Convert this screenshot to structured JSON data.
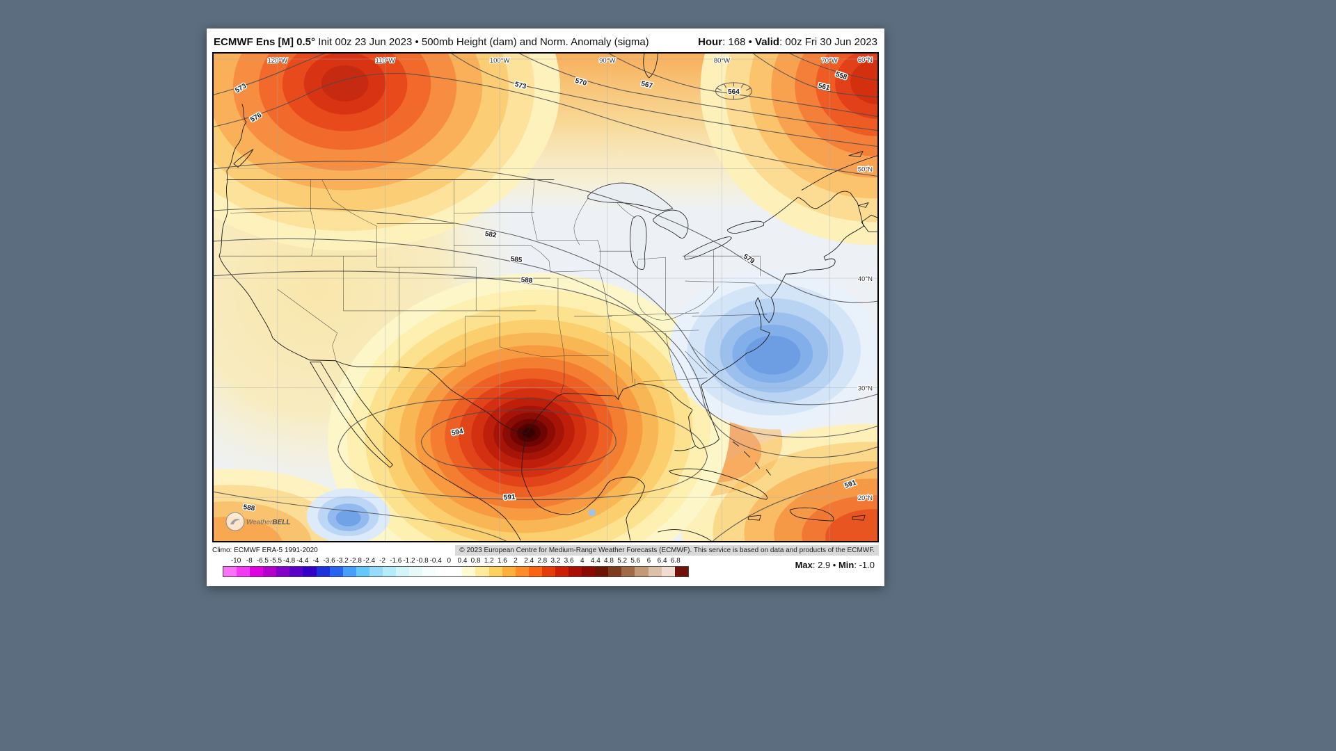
{
  "header": {
    "title_bold": "ECMWF Ens [M] 0.5°",
    "title_rest": "Init 00z 23 Jun 2023 • 500mb Height (dam) and Norm. Anomaly (sigma)",
    "hour_label": "Hour",
    "hour_value": "168",
    "valid_label": "Valid",
    "valid_value": "00z Fri 30 Jun 2023",
    "colon": ": ",
    "bullet": " • "
  },
  "map": {
    "lon_labels": [
      "120°W",
      "110°W",
      "100°W",
      "90°W",
      "80°W",
      "70°W"
    ],
    "lat_labels": [
      "60°N",
      "50°N",
      "40°N",
      "30°N",
      "20°N"
    ],
    "contour_labels": [
      "558",
      "561",
      "564",
      "567",
      "570",
      "573",
      "573",
      "576",
      "579",
      "582",
      "585",
      "588",
      "588",
      "591",
      "591",
      "594"
    ],
    "logo_weather": "Weather",
    "logo_bell": "BELL"
  },
  "footer": {
    "climo": "Climo: ECMWF ERA-5 1991-2020",
    "copyright": "© 2023 European Centre for Medium-Range Weather Forecasts (ECMWF). This service is based on data and products of the ECMWF."
  },
  "colorbar": {
    "ticks": [
      "-10",
      "-8",
      "-6.5",
      "-5.5",
      "-4.8",
      "-4.4",
      "-4",
      "-3.6",
      "-3.2",
      "-2.8",
      "-2.4",
      "-2",
      "-1.6",
      "-1.2",
      "-0.8",
      "-0.4",
      "0",
      "0.4",
      "0.8",
      "1.2",
      "1.6",
      "2",
      "2.4",
      "2.8",
      "3.2",
      "3.6",
      "4",
      "4.4",
      "4.8",
      "5.2",
      "5.6",
      "6",
      "6.4",
      "6.8"
    ],
    "cell_colors": [
      "#f973f9",
      "#f23cf2",
      "#e000e0",
      "#b400cd",
      "#8200c8",
      "#5a00c8",
      "#3200c8",
      "#1e32dc",
      "#2864f0",
      "#46a0fa",
      "#64c8fa",
      "#96dcfa",
      "#b4ecfa",
      "#d2f5fa",
      "#e6fafa",
      "#f5fdfd",
      "#ffffff",
      "#ffffff",
      "#fffad2",
      "#ffeb9b",
      "#ffd25f",
      "#ffb03c",
      "#ff8c28",
      "#fa6414",
      "#e63c0a",
      "#cd1e05",
      "#aa0f03",
      "#8c0a02",
      "#6e1405",
      "#7d3c1e",
      "#a06a46",
      "#c39a78",
      "#ddc0a8",
      "#f0dcd0",
      "#701208"
    ]
  },
  "stats": {
    "max_label": "Max",
    "max_value": "2.9",
    "min_label": "Min",
    "min_value": "-1.0",
    "colon": ": ",
    "bullet": " • "
  }
}
